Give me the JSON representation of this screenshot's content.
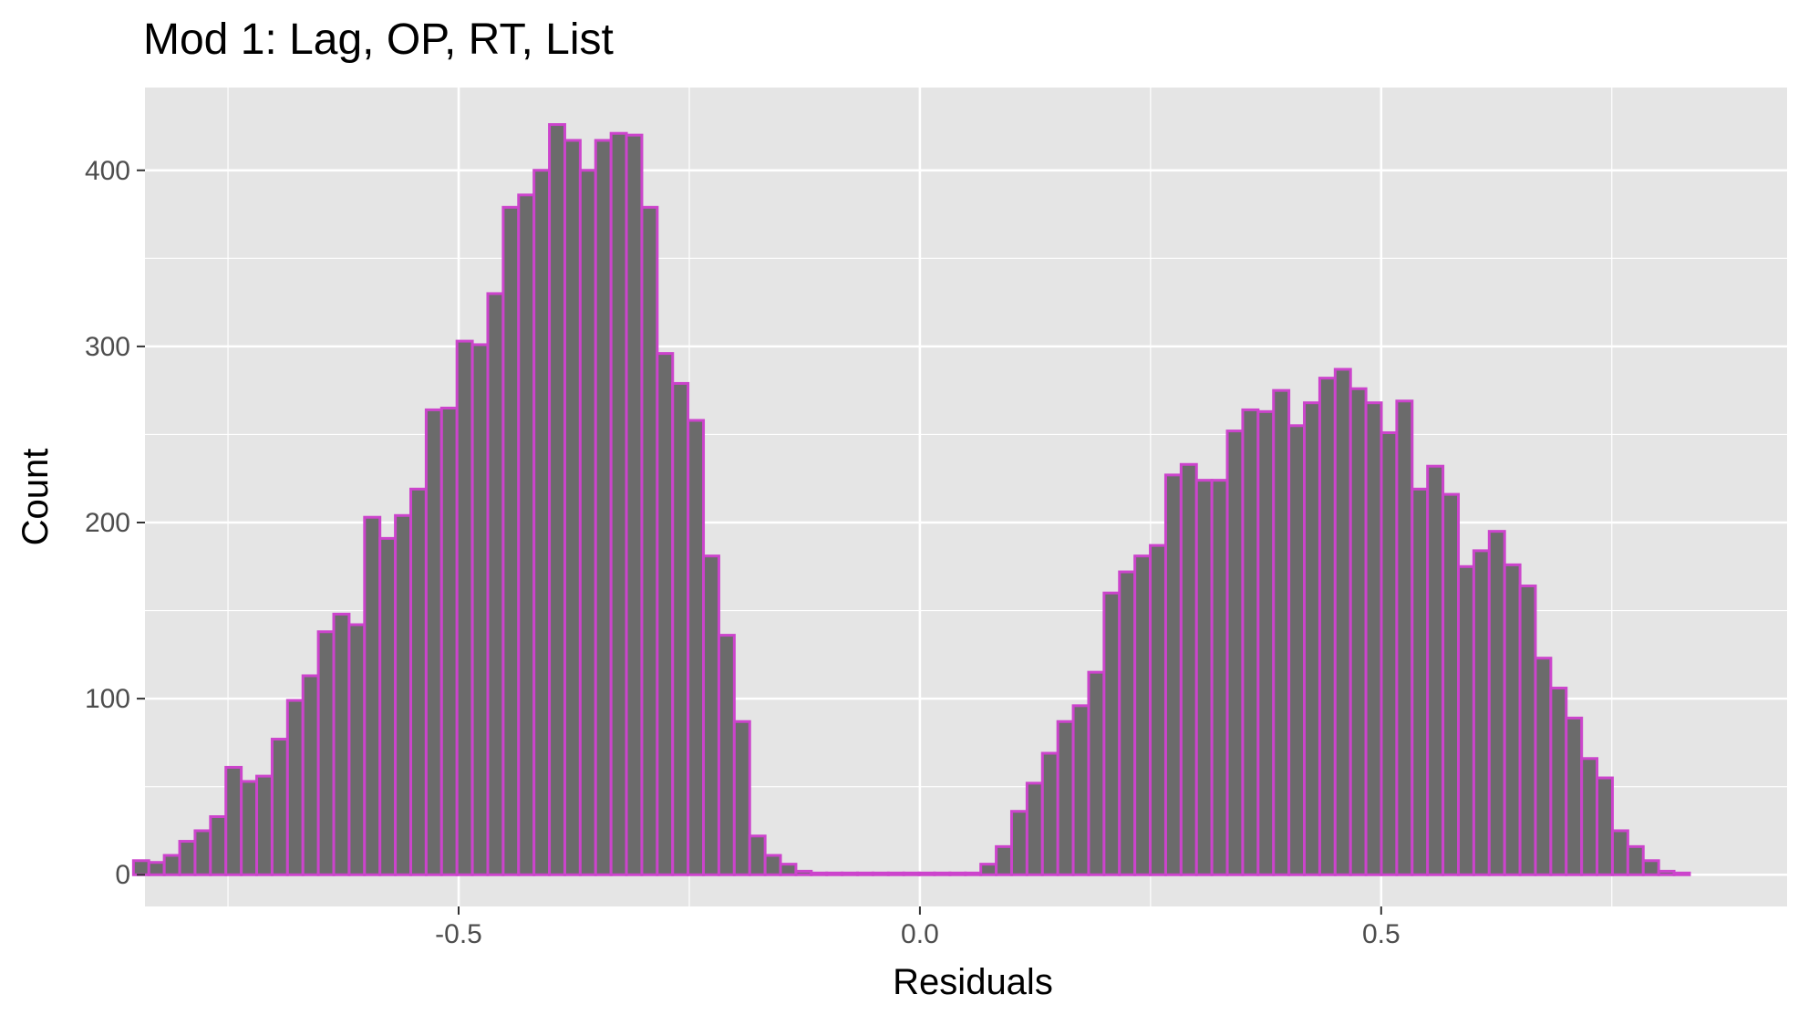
{
  "chart_data": {
    "type": "bar",
    "title": "Mod 1: Lag, OP, RT, List",
    "xlabel": "Residuals",
    "ylabel": "Count",
    "xlim": [
      -0.84,
      0.94
    ],
    "ylim": [
      -18,
      447
    ],
    "x_ticks": [
      -0.5,
      0.0,
      0.5
    ],
    "x_tick_labels": [
      "-0.5",
      "0.0",
      "0.5"
    ],
    "y_ticks": [
      0,
      100,
      200,
      300,
      400
    ],
    "y_tick_labels": [
      "0",
      "100",
      "200",
      "300",
      "400"
    ],
    "grid": true,
    "colors": {
      "panel": "#e5e5e5",
      "grid_major": "#ffffff",
      "bar_fill": "#6b6b6b",
      "bar_outline": "#cc44cc"
    },
    "bin_start": -0.8525,
    "bin_width": 0.0167,
    "counts": [
      8,
      7,
      11,
      19,
      25,
      33,
      61,
      53,
      56,
      77,
      99,
      113,
      138,
      148,
      142,
      203,
      191,
      204,
      219,
      264,
      265,
      303,
      301,
      330,
      379,
      386,
      400,
      426,
      417,
      400,
      417,
      421,
      420,
      379,
      296,
      279,
      258,
      181,
      136,
      87,
      22,
      11,
      6,
      2,
      1,
      1,
      1,
      1,
      1,
      1,
      1,
      1,
      1,
      1,
      1,
      6,
      16,
      36,
      52,
      69,
      87,
      96,
      115,
      160,
      172,
      181,
      187,
      227,
      233,
      224,
      224,
      252,
      264,
      263,
      275,
      255,
      268,
      282,
      287,
      276,
      268,
      251,
      269,
      219,
      232,
      216,
      175,
      184,
      195,
      176,
      164,
      123,
      106,
      89,
      66,
      55,
      25,
      16,
      8,
      2,
      1
    ]
  }
}
